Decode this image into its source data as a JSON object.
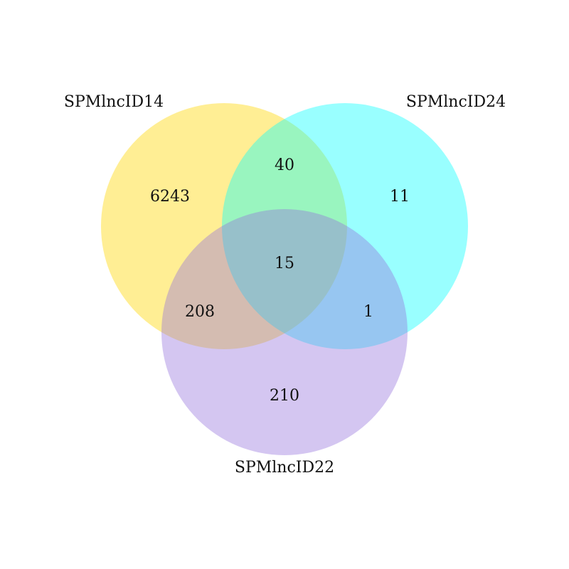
{
  "diagram": {
    "type": "venn",
    "sets": [
      {
        "id": "A",
        "label": "SPMlncID14",
        "color": "#FFD700"
      },
      {
        "id": "B",
        "label": "SPMlncID24",
        "color": "#00FFFF"
      },
      {
        "id": "C",
        "label": "SPMlncID22",
        "color": "#9370DB"
      }
    ],
    "regions": {
      "a_only": "6243",
      "b_only": "11",
      "c_only": "210",
      "ab": "40",
      "ac": "208",
      "bc": "1",
      "abc": "15"
    }
  }
}
